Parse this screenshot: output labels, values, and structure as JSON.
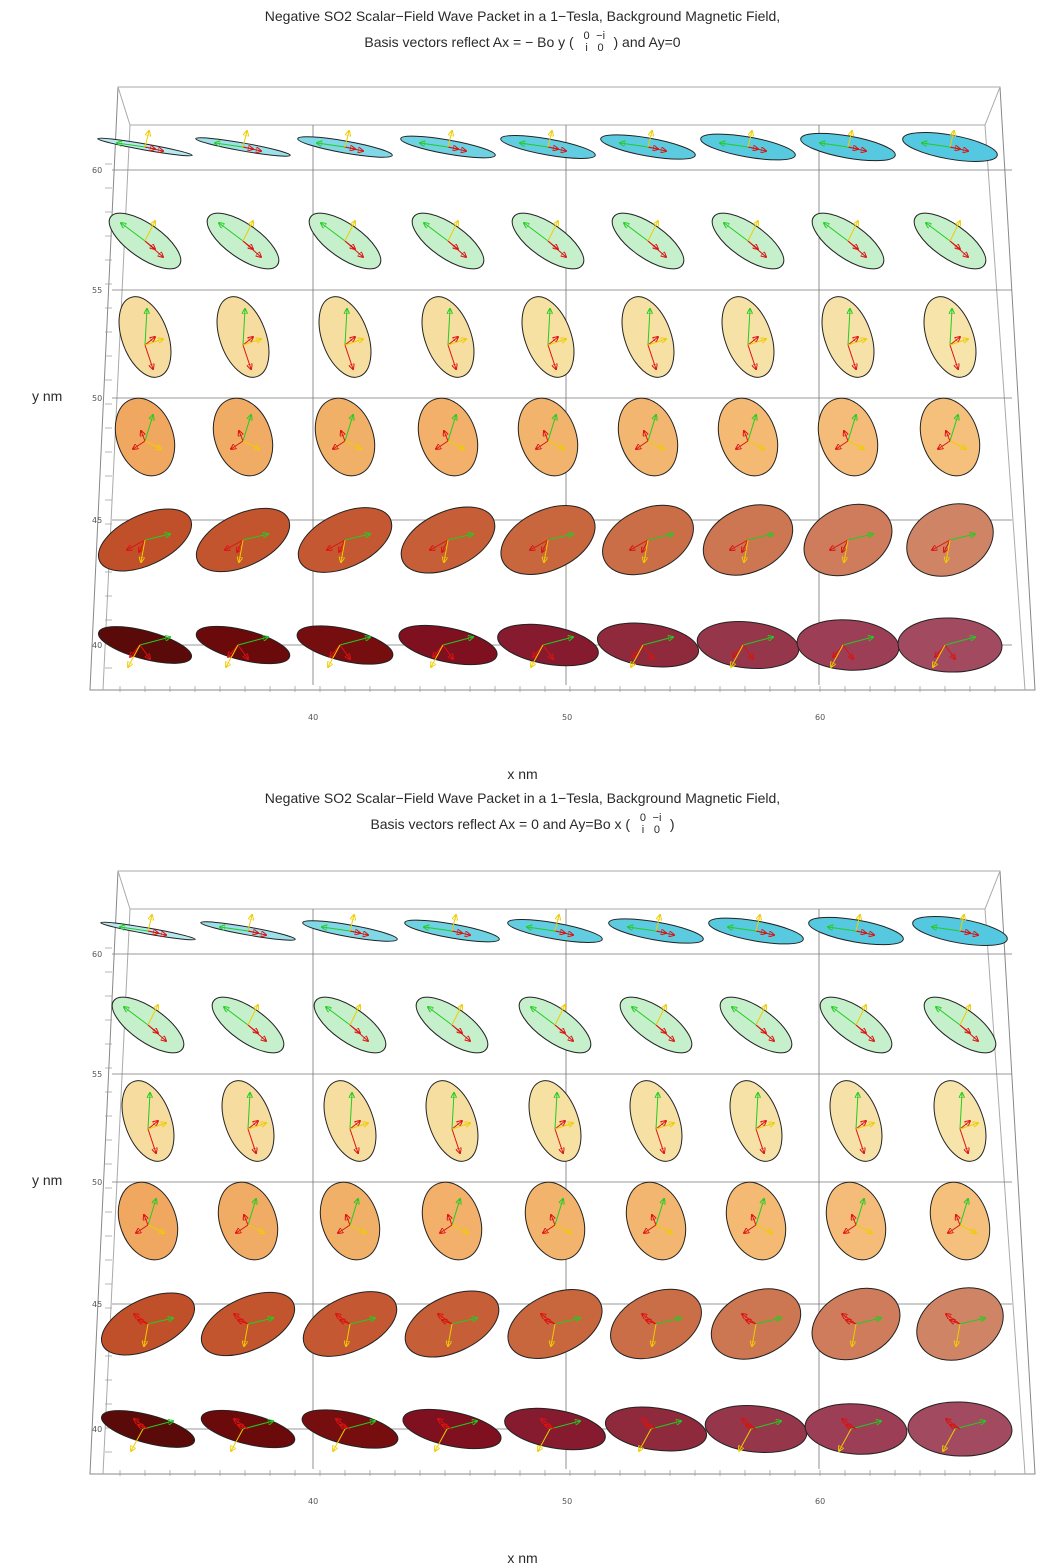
{
  "panels": [
    {
      "title": "Negative SO2 Scalar−Field Wave Packet in a 1−Tesla, Background Magnetic Field,",
      "basis_prefix": "Basis vectors reflect Ax = − Bo y (",
      "basis_suffix": ")  and  Ay=0",
      "matrix": [
        "0",
        "−i",
        "i",
        "0"
      ],
      "ylabel": "y nm",
      "xlabel": "x nm"
    },
    {
      "title": "Negative SO2 Scalar−Field Wave Packet in a 1−Tesla, Background Magnetic Field,",
      "basis_prefix": "Basis vectors reflect Ax = 0  and  Ay=Bo x (",
      "basis_suffix": ")",
      "matrix": [
        "0",
        "−i",
        "i",
        "0"
      ],
      "ylabel": "y nm",
      "xlabel": "x nm"
    }
  ],
  "chart_data": [
    {
      "type": "scatter",
      "title": "Negative SO2 Scalar−Field Wave Packet in a 1−Tesla, Background Magnetic Field,",
      "xlabel": "x nm",
      "ylabel": "y nm",
      "x_ticks": [
        40,
        50,
        60
      ],
      "y_ticks": [
        40,
        45,
        50,
        55,
        60
      ],
      "xlim": [
        32,
        67
      ],
      "ylim": [
        38,
        62
      ],
      "grid": true,
      "time_steps": 9,
      "rows": [
        {
          "y": 40.4,
          "colors": [
            "#5a0a08",
            "#6a0a0a",
            "#760e10",
            "#7e1020",
            "#861a2e",
            "#8e2a3c",
            "#96364a",
            "#9c3e56",
            "#a24a60"
          ]
        },
        {
          "y": 45.2,
          "colors": [
            "#c0502a",
            "#c2542e",
            "#c45832",
            "#c65e38",
            "#c8663e",
            "#ca6e48",
            "#cc7652",
            "#ce7c5c",
            "#d08466"
          ]
        },
        {
          "y": 49.8,
          "colors": [
            "#f0a860",
            "#f0ac64",
            "#f0b068",
            "#f2b06a",
            "#f2b46c",
            "#f2b670",
            "#f4ba74",
            "#f4bc78",
            "#f4c07c"
          ]
        },
        {
          "y": 53.8,
          "colors": [
            "#f6dc9e",
            "#f6dc9e",
            "#f6dea0",
            "#f6dea0",
            "#f6e0a2",
            "#f6e0a4",
            "#f6e2a6",
            "#f6e2a8",
            "#f6e4aa"
          ]
        },
        {
          "y": 57.4,
          "colors": [
            "#c6f0cc",
            "#c6f0cc",
            "#c6f0cc",
            "#c6f0cc",
            "#c6f0cc",
            "#c6f0cc",
            "#c6f0cc",
            "#c6f0cc",
            "#c6f0cc"
          ]
        },
        {
          "y": 60.6,
          "colors": [
            "#b8e8f0",
            "#9ee0ea",
            "#80d8e6",
            "#6ed2e2",
            "#62cde0",
            "#5ccbe0",
            "#58cae0",
            "#56c9e0",
            "#54c8e0"
          ]
        }
      ]
    },
    {
      "type": "scatter",
      "title": "Negative SO2 Scalar−Field Wave Packet in a 1−Tesla, Background Magnetic Field,",
      "xlabel": "x nm",
      "ylabel": "y nm",
      "x_ticks": [
        40,
        50,
        60
      ],
      "y_ticks": [
        40,
        45,
        50,
        55,
        60
      ],
      "xlim": [
        32,
        67
      ],
      "ylim": [
        38,
        62
      ],
      "grid": true,
      "time_steps": 9,
      "rows": [
        {
          "y": 40.4,
          "colors": [
            "#5a0a08",
            "#6a0a0a",
            "#760e10",
            "#7e1020",
            "#861a2e",
            "#8e2a3c",
            "#96364a",
            "#9c3e56",
            "#a24a60"
          ]
        },
        {
          "y": 45.2,
          "colors": [
            "#c0502a",
            "#c2542e",
            "#c45832",
            "#c65e38",
            "#c8663e",
            "#ca6e48",
            "#cc7652",
            "#ce7c5c",
            "#d08466"
          ]
        },
        {
          "y": 49.8,
          "colors": [
            "#f0a860",
            "#f0ac64",
            "#f0b068",
            "#f2b06a",
            "#f2b46c",
            "#f2b670",
            "#f4ba74",
            "#f4bc78",
            "#f4c07c"
          ]
        },
        {
          "y": 53.8,
          "colors": [
            "#f6dc9e",
            "#f6dc9e",
            "#f6dea0",
            "#f6dea0",
            "#f6e0a2",
            "#f6e0a4",
            "#f6e2a6",
            "#f6e2a8",
            "#f6e4aa"
          ]
        },
        {
          "y": 57.4,
          "colors": [
            "#c6f0cc",
            "#c6f0cc",
            "#c6f0cc",
            "#c6f0cc",
            "#c6f0cc",
            "#c6f0cc",
            "#c6f0cc",
            "#c6f0cc",
            "#c6f0cc"
          ]
        },
        {
          "y": 60.6,
          "colors": [
            "#b8e8f0",
            "#9ee0ea",
            "#80d8e6",
            "#6ed2e2",
            "#62cde0",
            "#5ccbe0",
            "#58cae0",
            "#56c9e0",
            "#54c8e0"
          ]
        }
      ]
    }
  ]
}
